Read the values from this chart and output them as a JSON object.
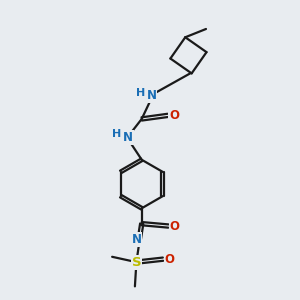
{
  "bg_color": "#e8ecf0",
  "bond_color": "#1a1a1a",
  "bond_width": 1.6,
  "dbo": 0.055,
  "atom_colors": {
    "N": "#1a6eb5",
    "O": "#cc2200",
    "S": "#bbbb00",
    "C": "#1a1a1a"
  },
  "font_size": 8.5,
  "figsize": [
    3.0,
    3.0
  ],
  "dpi": 100,
  "xlim": [
    0,
    10
  ],
  "ylim": [
    0,
    10
  ]
}
